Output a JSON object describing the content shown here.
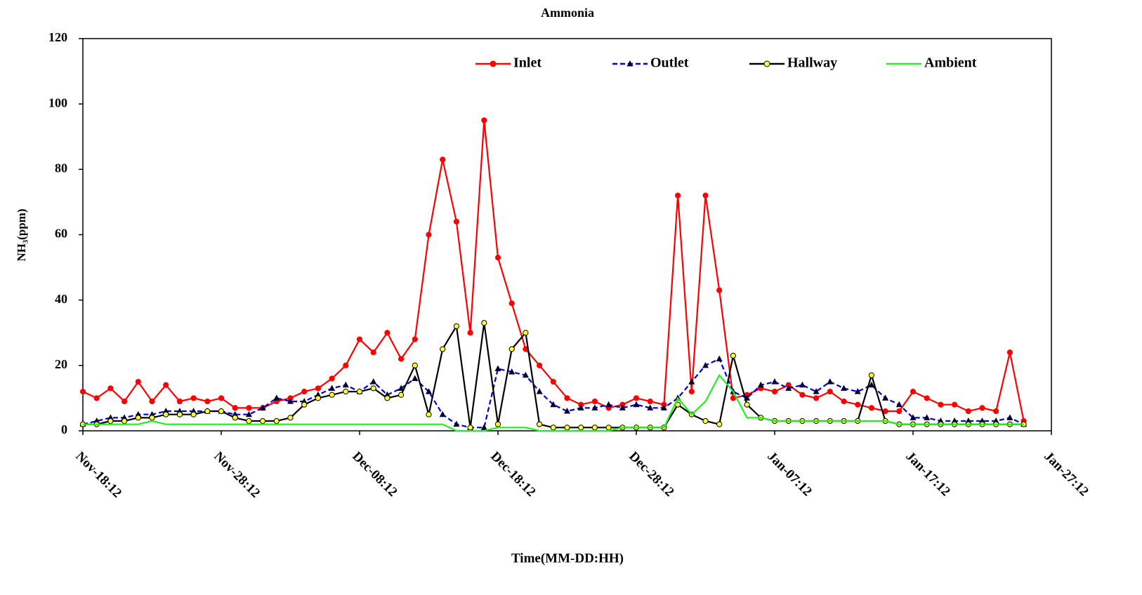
{
  "chart_data": {
    "type": "line",
    "title": "Ammonia",
    "x_label": "Time(MM-DD:HH)",
    "y_label": "NH₃(ppm)",
    "legend": "upper right",
    "grid": false,
    "xlim": [
      "Nov-18:12",
      "Jan-27:12"
    ],
    "xticks": [
      "Nov-18:12",
      "Nov-28:12",
      "Dec-08:12",
      "Dec-18:12",
      "Dec-28:12",
      "Jan-07:12",
      "Jan-17:12",
      "Jan-27:12"
    ],
    "ylim": [
      0,
      120
    ],
    "yticks": [
      0,
      20,
      40,
      60,
      80,
      100,
      120
    ],
    "x": [
      "Nov-18:12",
      "Nov-19:12",
      "Nov-20:12",
      "Nov-21:12",
      "Nov-22:12",
      "Nov-23:12",
      "Nov-24:12",
      "Nov-25:12",
      "Nov-26:12",
      "Nov-27:12",
      "Nov-28:12",
      "Nov-29:12",
      "Nov-30:12",
      "Dec-01:12",
      "Dec-02:12",
      "Dec-03:12",
      "Dec-04:12",
      "Dec-05:12",
      "Dec-06:12",
      "Dec-07:12",
      "Dec-08:12",
      "Dec-09:12",
      "Dec-10:12",
      "Dec-11:12",
      "Dec-12:12",
      "Dec-13:12",
      "Dec-14:12",
      "Dec-15:12",
      "Dec-16:12",
      "Dec-17:12",
      "Dec-18:12",
      "Dec-19:12",
      "Dec-20:12",
      "Dec-21:12",
      "Dec-22:12",
      "Dec-23:12",
      "Dec-24:12",
      "Dec-25:12",
      "Dec-26:12",
      "Dec-27:12",
      "Dec-28:12",
      "Dec-29:12",
      "Dec-30:12",
      "Dec-31:12",
      "Jan-01:12",
      "Jan-02:12",
      "Jan-03:12",
      "Jan-04:12",
      "Jan-05:12",
      "Jan-06:12",
      "Jan-07:12",
      "Jan-08:12",
      "Jan-09:12",
      "Jan-10:12",
      "Jan-11:12",
      "Jan-12:12",
      "Jan-13:12",
      "Jan-14:12",
      "Jan-15:12",
      "Jan-16:12",
      "Jan-17:12",
      "Jan-18:12",
      "Jan-19:12",
      "Jan-20:12",
      "Jan-21:12",
      "Jan-22:12",
      "Jan-23:12",
      "Jan-24:12",
      "Jan-25:12"
    ],
    "series": [
      {
        "name": "Inlet",
        "color": "#ff0000",
        "marker": "circle",
        "marker_color": "#ff0000",
        "linestyle": "solid",
        "values": [
          12,
          10,
          13,
          9,
          15,
          9,
          14,
          9,
          10,
          9,
          10,
          7,
          7,
          7,
          9,
          10,
          12,
          13,
          16,
          20,
          28,
          24,
          30,
          22,
          28,
          60,
          83,
          64,
          30,
          95,
          53,
          39,
          25,
          20,
          15,
          10,
          8,
          9,
          7,
          8,
          10,
          9,
          8,
          72,
          12,
          72,
          43,
          10,
          11,
          13,
          12,
          14,
          11,
          10,
          12,
          9,
          8,
          7,
          6,
          6,
          12,
          10,
          8,
          8,
          6,
          7,
          6,
          24,
          3
        ]
      },
      {
        "name": "Outlet",
        "color": "#0000cc",
        "marker": "triangle",
        "marker_color": "#000033",
        "linestyle": "dashed",
        "values": [
          2,
          3,
          4,
          4,
          5,
          5,
          6,
          6,
          6,
          6,
          6,
          5,
          5,
          7,
          10,
          9,
          9,
          11,
          13,
          14,
          12,
          15,
          11,
          13,
          16,
          12,
          5,
          2,
          1,
          1,
          19,
          18,
          17,
          12,
          8,
          6,
          7,
          7,
          8,
          7,
          8,
          7,
          7,
          10,
          15,
          20,
          22,
          12,
          10,
          14,
          15,
          13,
          14,
          12,
          15,
          13,
          12,
          14,
          10,
          8,
          4,
          4,
          3,
          3,
          3,
          3,
          3,
          4,
          2
        ]
      },
      {
        "name": "Hallway",
        "color": "#000000",
        "marker": "circle",
        "marker_color": "#ffff33",
        "linestyle": "solid",
        "values": [
          2,
          2,
          3,
          3,
          4,
          4,
          5,
          5,
          5,
          6,
          6,
          4,
          3,
          3,
          3,
          4,
          8,
          10,
          11,
          12,
          12,
          13,
          10,
          11,
          20,
          5,
          25,
          32,
          1,
          33,
          2,
          25,
          30,
          2,
          1,
          1,
          1,
          1,
          1,
          1,
          1,
          1,
          1,
          8,
          5,
          3,
          2,
          23,
          8,
          4,
          3,
          3,
          3,
          3,
          3,
          3,
          3,
          17,
          3,
          2,
          2,
          2,
          2,
          2,
          2,
          2,
          2,
          2,
          2
        ]
      },
      {
        "name": "Ambient",
        "color": "#22ee22",
        "marker": "none",
        "marker_color": "#22ee22",
        "linestyle": "solid",
        "values": [
          2,
          2,
          2,
          2,
          2,
          3,
          2,
          2,
          2,
          2,
          2,
          2,
          2,
          2,
          2,
          2,
          2,
          2,
          2,
          2,
          2,
          2,
          2,
          2,
          2,
          2,
          2,
          0,
          0,
          0,
          1,
          1,
          1,
          0,
          0,
          0,
          0,
          0,
          0,
          1,
          1,
          1,
          1,
          10,
          5,
          9,
          17,
          12,
          4,
          4,
          3,
          3,
          3,
          3,
          3,
          3,
          3,
          3,
          3,
          2,
          2,
          2,
          2,
          2,
          2,
          2,
          2,
          2,
          2
        ]
      }
    ]
  }
}
